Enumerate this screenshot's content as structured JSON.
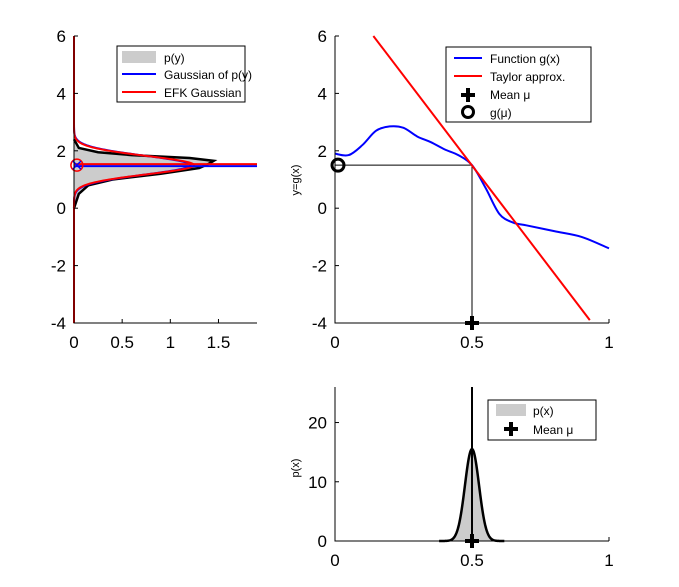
{
  "chart_data": [
    {
      "type": "area",
      "xlim": [
        0,
        1.9
      ],
      "ylim": [
        -4,
        6
      ],
      "xticks": [
        "0",
        "0.5",
        "1",
        "1.5"
      ],
      "xtick_values": [
        0,
        0.5,
        1,
        1.5
      ],
      "yticks": [
        "-4",
        "-2",
        "0",
        "2",
        "4",
        "6"
      ],
      "ytick_values": [
        -4,
        -2,
        0,
        2,
        4,
        6
      ],
      "orientation": "horizontal-density",
      "legend": [
        "p(y)",
        "Gaussian of p(y)",
        "EFK Gaussian"
      ],
      "legend_position": "top-right",
      "py_samples": {
        "y": [
          0,
          0.5,
          0.8,
          1.0,
          1.2,
          1.4,
          1.55,
          1.65,
          1.75,
          1.85,
          1.95,
          2.1,
          2.4
        ],
        "p": [
          0,
          0.05,
          0.15,
          0.4,
          0.9,
          1.3,
          1.4,
          1.45,
          1.2,
          0.6,
          0.25,
          0.05,
          0
        ]
      },
      "gaussian_of_py": {
        "mean": 1.5,
        "std": 0.33
      },
      "efk_gaussian": {
        "mean": 1.5,
        "std": 0.32
      },
      "mean_line_y": 1.5,
      "colors": {
        "p": "#cccccc",
        "gaussian": "#0000ff",
        "efk": "#ff0000"
      }
    },
    {
      "type": "line",
      "xlim": [
        0,
        1
      ],
      "ylim": [
        -4,
        6
      ],
      "ylabel": "y=g(x)",
      "xticks": [
        "0",
        "0.5",
        "1"
      ],
      "xtick_values": [
        0,
        0.5,
        1
      ],
      "yticks": [
        "-4",
        "-2",
        "0",
        "2",
        "4",
        "6"
      ],
      "ytick_values": [
        -4,
        -2,
        0,
        2,
        4,
        6
      ],
      "legend": [
        "Function g(x)",
        "Taylor approx.",
        "Mean μ",
        "g(μ)"
      ],
      "legend_position": "top-right",
      "g": {
        "x": [
          0,
          0.05,
          0.1,
          0.15,
          0.2,
          0.25,
          0.3,
          0.35,
          0.4,
          0.45,
          0.5,
          0.55,
          0.6,
          0.65,
          0.7,
          0.8,
          0.9,
          1
        ],
        "y": [
          1.9,
          1.85,
          2.2,
          2.7,
          2.85,
          2.8,
          2.5,
          2.3,
          2.05,
          1.85,
          1.5,
          0.7,
          -0.2,
          -0.5,
          -0.6,
          -0.8,
          -1.0,
          -1.4
        ]
      },
      "taylor": {
        "x": [
          0.14,
          0.93
        ],
        "y": [
          6,
          -3.9
        ]
      },
      "mean": {
        "x": 0.5,
        "y": -4
      },
      "g_mu": {
        "x": 0,
        "y": 1.5
      },
      "colors": {
        "g": "#0000ff",
        "taylor": "#ff0000"
      }
    },
    {
      "type": "area",
      "xlim": [
        0,
        1
      ],
      "ylim": [
        0,
        26
      ],
      "ylabel": "p(x)",
      "xticks": [
        "0",
        "0.5",
        "1"
      ],
      "xtick_values": [
        0,
        0.5,
        1
      ],
      "yticks": [
        "0",
        "10",
        "20"
      ],
      "ytick_values": [
        0,
        10,
        20
      ],
      "legend": [
        "p(x)",
        "Mean μ"
      ],
      "legend_position": "top-right",
      "px": {
        "mean": 0.5,
        "std": 0.0257
      },
      "mean": {
        "x": 0.5,
        "y": 0
      }
    }
  ]
}
